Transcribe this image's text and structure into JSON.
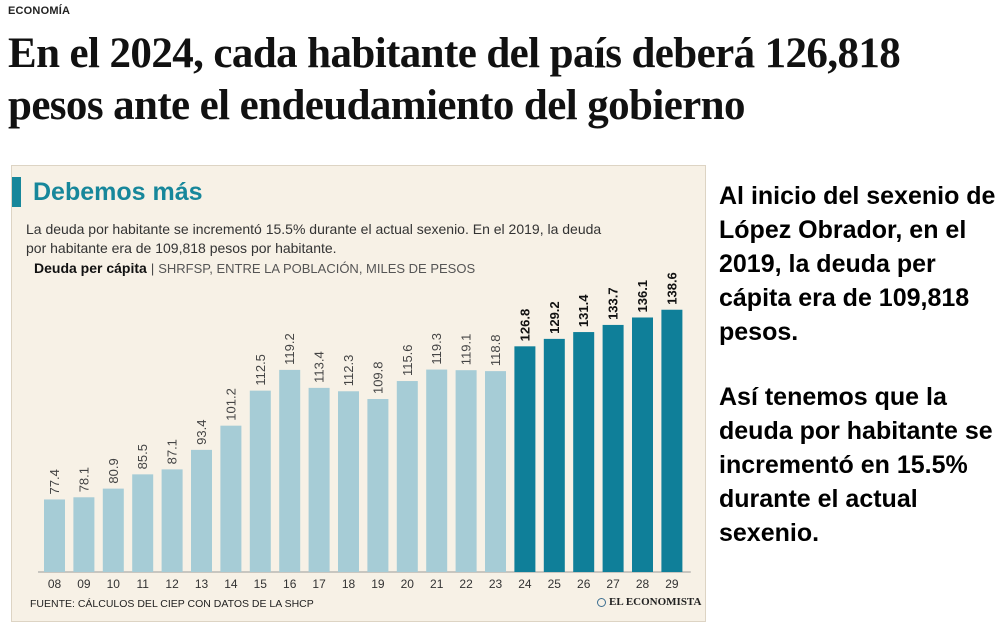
{
  "section": "ECONOMÍA",
  "headline": {
    "line1": "En el 2024, cada habitante del país deberá 126,818",
    "line2": "pesos ante el endeudamiento del gobierno"
  },
  "card": {
    "title": "Debemos más",
    "subtitle_line1": "La deuda por habitante se incrementó 15.5% durante el actual sexenio. En el 2019, la deuda",
    "subtitle_line2": "por habitante era de 109,818 pesos por habitante.",
    "unit_strong": "Deuda per cápita",
    "unit_sep": "|",
    "unit_rest": "SHRFSP, ENTRE LA POBLACIÓN, MILES DE PESOS",
    "source": "FUENTE: CÁLCULOS DEL CIEP CON DATOS DE LA SHCP",
    "brand": "EL ECONOMISTA"
  },
  "colors": {
    "accent": "#17879b",
    "bar_light": "#a6ccd6",
    "bar_dark": "#0f7f99",
    "card_bg": "#f7f1e6"
  },
  "chart_data": {
    "type": "bar",
    "title": "Debemos más",
    "categories": [
      "08",
      "09",
      "10",
      "11",
      "12",
      "13",
      "14",
      "15",
      "16",
      "17",
      "18",
      "19",
      "20",
      "21",
      "22",
      "23",
      "24",
      "25",
      "26",
      "27",
      "28",
      "29"
    ],
    "values": [
      77.4,
      78.1,
      80.9,
      85.5,
      87.1,
      93.4,
      101.2,
      112.5,
      119.2,
      113.4,
      112.3,
      109.8,
      115.6,
      119.3,
      119.1,
      118.8,
      126.8,
      129.2,
      131.4,
      133.7,
      136.1,
      138.6
    ],
    "highlight_from_category": "24",
    "xlabel": "",
    "ylabel": "",
    "grid": false,
    "legend": "none"
  },
  "side": {
    "para1": "Al inicio del sexenio de López Obrador, en el 2019, la deuda per cápita era de 109,818 pesos.",
    "para2": "Así tenemos que la deuda por habitante se incrementó en 15.5% durante el actual sexenio."
  }
}
